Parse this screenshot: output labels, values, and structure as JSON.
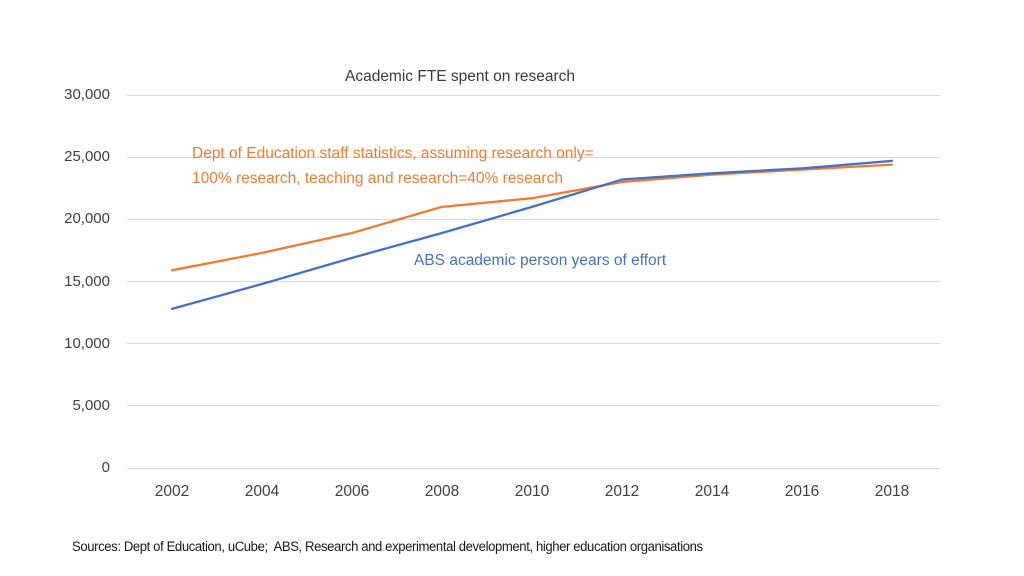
{
  "slide": {
    "title": "Academic FTE spent on research",
    "source_note": "Sources: Dept of Education, uCube;  ABS, Research and experimental development, higher education organisations"
  },
  "annotations": {
    "doe_line1": "Dept of Education staff statistics, assuming research only=",
    "doe_line2": "100% research, teaching and research=40% research",
    "abs": "ABS academic person years of effort"
  },
  "chart_data": {
    "type": "line",
    "title": "Academic FTE spent on research",
    "xlabel": "",
    "ylabel": "",
    "categories": [
      "2002",
      "2004",
      "2006",
      "2008",
      "2010",
      "2012",
      "2014",
      "2016",
      "2018"
    ],
    "series": [
      {
        "name": "Dept of Education staff statistics, assuming research only= 100% research, teaching and research=40% research",
        "color": "#ED7D31",
        "values": [
          15900,
          17300,
          18900,
          21000,
          21700,
          23000,
          23600,
          24000,
          24400
        ]
      },
      {
        "name": "ABS academic person years of effort",
        "color": "#4472C4",
        "values": [
          12800,
          14800,
          16900,
          18900,
          21000,
          23200,
          23700,
          24100,
          24700
        ]
      }
    ],
    "ylim": [
      0,
      30000
    ],
    "y_tick_step": 5000,
    "y_tick_labels": [
      "0",
      "5,000",
      "10,000",
      "15,000",
      "20,000",
      "25,000",
      "30,000"
    ],
    "grid": "horizontal",
    "legend": "inline-text-annotations",
    "gridline_color": "#d9d9d9"
  }
}
